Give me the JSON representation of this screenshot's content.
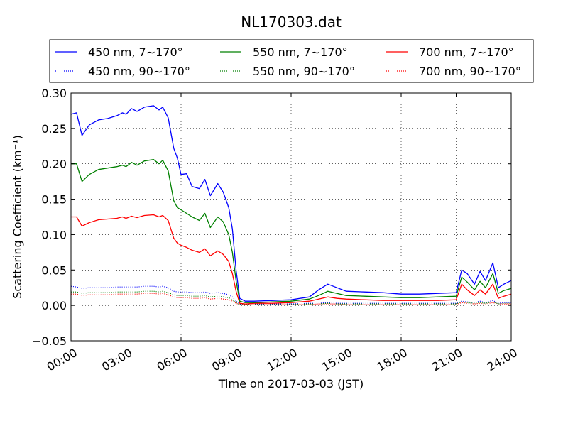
{
  "chart_data": {
    "type": "line",
    "title": "NL170303.dat",
    "xlabel": "Time on 2017-03-03 (JST)",
    "ylabel": "Scattering Coefficient (km⁻¹)",
    "xlim": [
      0,
      24
    ],
    "ylim": [
      -0.05,
      0.3
    ],
    "grid": true,
    "legend_position": "top",
    "legend_columns": 3,
    "x_tick_labels": [
      "00:00",
      "03:00",
      "06:00",
      "09:00",
      "12:00",
      "15:00",
      "18:00",
      "21:00",
      "24:00"
    ],
    "x_ticks": [
      0,
      3,
      6,
      9,
      12,
      15,
      18,
      21,
      24
    ],
    "y_tick_labels": [
      "−0.05",
      "0.00",
      "0.05",
      "0.10",
      "0.15",
      "0.20",
      "0.25",
      "0.30"
    ],
    "y_ticks": [
      -0.05,
      0.0,
      0.05,
      0.1,
      0.15,
      0.2,
      0.25,
      0.3
    ],
    "x": [
      0.0,
      0.3,
      0.6,
      1.0,
      1.5,
      2.0,
      2.5,
      2.8,
      3.0,
      3.3,
      3.6,
      4.0,
      4.5,
      4.8,
      5.0,
      5.3,
      5.6,
      5.8,
      6.0,
      6.3,
      6.6,
      7.0,
      7.3,
      7.6,
      8.0,
      8.3,
      8.6,
      8.8,
      9.0,
      9.2,
      9.5,
      10.0,
      11.0,
      12.0,
      13.0,
      13.5,
      14.0,
      14.5,
      15.0,
      16.0,
      17.0,
      18.0,
      19.0,
      20.0,
      21.0,
      21.3,
      21.6,
      22.0,
      22.3,
      22.6,
      23.0,
      23.3,
      23.6,
      24.0
    ],
    "series": [
      {
        "name": "450 nm, 7∼170°",
        "color": "#0000ff",
        "style": "solid",
        "values": [
          0.27,
          0.272,
          0.24,
          0.255,
          0.262,
          0.264,
          0.268,
          0.272,
          0.27,
          0.278,
          0.274,
          0.28,
          0.282,
          0.276,
          0.28,
          0.265,
          0.222,
          0.208,
          0.185,
          0.186,
          0.168,
          0.165,
          0.178,
          0.155,
          0.172,
          0.16,
          0.138,
          0.108,
          0.05,
          0.01,
          0.006,
          0.006,
          0.007,
          0.008,
          0.012,
          0.022,
          0.03,
          0.025,
          0.02,
          0.019,
          0.018,
          0.016,
          0.016,
          0.017,
          0.018,
          0.05,
          0.045,
          0.03,
          0.048,
          0.035,
          0.06,
          0.025,
          0.03,
          0.035
        ]
      },
      {
        "name": "550 nm, 7∼170°",
        "color": "#008000",
        "style": "solid",
        "values": [
          0.2,
          0.2,
          0.175,
          0.185,
          0.192,
          0.194,
          0.196,
          0.198,
          0.196,
          0.202,
          0.198,
          0.204,
          0.206,
          0.2,
          0.205,
          0.19,
          0.148,
          0.138,
          0.135,
          0.13,
          0.125,
          0.12,
          0.13,
          0.11,
          0.125,
          0.118,
          0.1,
          0.075,
          0.035,
          0.006,
          0.004,
          0.004,
          0.005,
          0.006,
          0.009,
          0.014,
          0.02,
          0.017,
          0.014,
          0.013,
          0.012,
          0.011,
          0.011,
          0.012,
          0.013,
          0.04,
          0.033,
          0.022,
          0.034,
          0.025,
          0.045,
          0.017,
          0.021,
          0.024
        ]
      },
      {
        "name": "700 nm, 7∼170°",
        "color": "#ff0000",
        "style": "solid",
        "values": [
          0.125,
          0.125,
          0.112,
          0.117,
          0.121,
          0.122,
          0.123,
          0.125,
          0.123,
          0.126,
          0.124,
          0.127,
          0.128,
          0.125,
          0.127,
          0.12,
          0.095,
          0.088,
          0.085,
          0.082,
          0.078,
          0.075,
          0.08,
          0.07,
          0.077,
          0.072,
          0.062,
          0.045,
          0.02,
          0.003,
          0.002,
          0.003,
          0.003,
          0.004,
          0.006,
          0.009,
          0.012,
          0.01,
          0.009,
          0.008,
          0.007,
          0.007,
          0.007,
          0.007,
          0.008,
          0.03,
          0.022,
          0.014,
          0.022,
          0.016,
          0.03,
          0.01,
          0.013,
          0.016
        ]
      },
      {
        "name": "450 nm, 90∼170°",
        "color": "#0000ff",
        "style": "dotted",
        "values": [
          0.027,
          0.026,
          0.024,
          0.025,
          0.025,
          0.025,
          0.026,
          0.026,
          0.026,
          0.026,
          0.026,
          0.027,
          0.027,
          0.026,
          0.027,
          0.025,
          0.02,
          0.019,
          0.019,
          0.019,
          0.018,
          0.018,
          0.019,
          0.017,
          0.018,
          0.017,
          0.015,
          0.012,
          0.006,
          0.002,
          0.002,
          0.002,
          0.002,
          0.002,
          0.003,
          0.003,
          0.004,
          0.003,
          0.003,
          0.003,
          0.003,
          0.003,
          0.003,
          0.003,
          0.003,
          0.006,
          0.005,
          0.004,
          0.006,
          0.004,
          0.007,
          0.003,
          0.004,
          0.004
        ]
      },
      {
        "name": "550 nm, 90∼170°",
        "color": "#008000",
        "style": "dotted",
        "values": [
          0.019,
          0.019,
          0.017,
          0.018,
          0.018,
          0.018,
          0.019,
          0.019,
          0.019,
          0.019,
          0.019,
          0.02,
          0.02,
          0.019,
          0.02,
          0.018,
          0.015,
          0.014,
          0.014,
          0.014,
          0.013,
          0.013,
          0.014,
          0.012,
          0.013,
          0.012,
          0.011,
          0.008,
          0.004,
          0.001,
          0.001,
          0.001,
          0.001,
          0.001,
          0.002,
          0.002,
          0.003,
          0.002,
          0.002,
          0.002,
          0.002,
          0.002,
          0.002,
          0.002,
          0.002,
          0.005,
          0.004,
          0.003,
          0.004,
          0.003,
          0.005,
          0.002,
          0.003,
          0.003
        ]
      },
      {
        "name": "700 nm, 90∼170°",
        "color": "#ff0000",
        "style": "dotted",
        "values": [
          0.016,
          0.016,
          0.014,
          0.015,
          0.015,
          0.015,
          0.016,
          0.016,
          0.016,
          0.016,
          0.016,
          0.017,
          0.017,
          0.016,
          0.017,
          0.015,
          0.012,
          0.011,
          0.011,
          0.011,
          0.01,
          0.01,
          0.011,
          0.009,
          0.01,
          0.009,
          0.008,
          0.006,
          0.003,
          0.001,
          0.001,
          0.001,
          0.001,
          0.001,
          0.001,
          0.002,
          0.002,
          0.002,
          0.001,
          0.001,
          0.001,
          0.001,
          0.001,
          0.001,
          0.001,
          0.004,
          0.003,
          0.002,
          0.003,
          0.002,
          0.004,
          0.002,
          0.002,
          0.002
        ]
      }
    ]
  }
}
